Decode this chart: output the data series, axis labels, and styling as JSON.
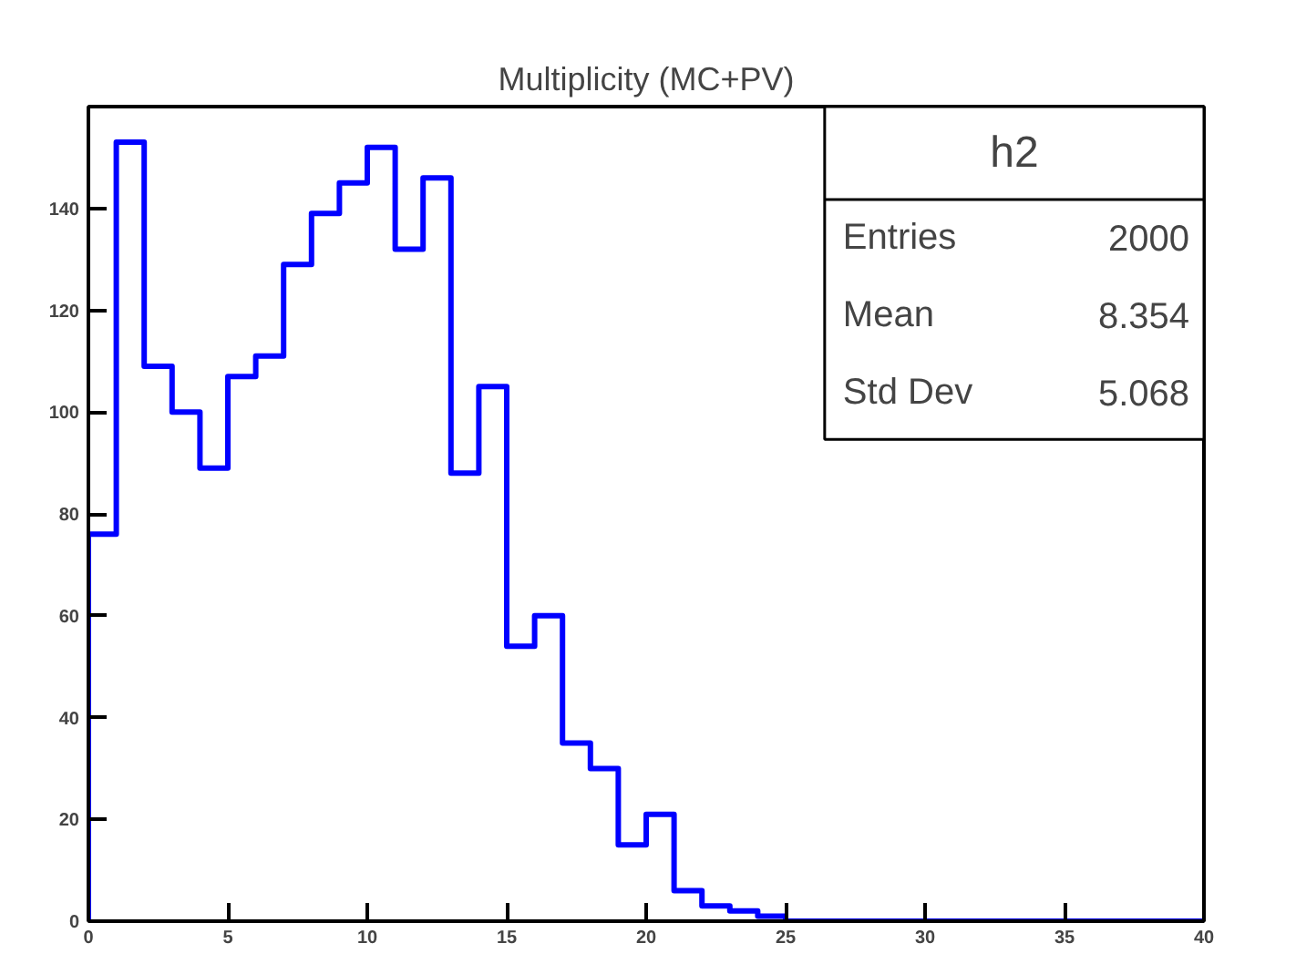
{
  "chart_data": {
    "type": "histogram",
    "title": "Multiplicity (MC+PV)",
    "bins": [
      0,
      1,
      2,
      3,
      4,
      5,
      6,
      7,
      8,
      9,
      10,
      11,
      12,
      13,
      14,
      15,
      16,
      17,
      18,
      19,
      20,
      21,
      22,
      23,
      24,
      25,
      26,
      27,
      28,
      29,
      30,
      31,
      32,
      33,
      34,
      35,
      36,
      37,
      38,
      39,
      40
    ],
    "values": [
      76,
      153,
      109,
      100,
      89,
      107,
      111,
      129,
      139,
      145,
      152,
      132,
      146,
      88,
      105,
      54,
      60,
      35,
      30,
      15,
      21,
      6,
      3,
      2,
      1,
      0,
      0,
      0,
      0,
      0,
      0,
      0,
      0,
      0,
      0,
      0,
      0,
      0,
      0,
      0
    ],
    "color": "#0000ff",
    "xlim": [
      0,
      40
    ],
    "xticks": [
      0,
      5,
      10,
      15,
      20,
      25,
      30,
      35,
      40
    ],
    "ylim": [
      0,
      160
    ],
    "yticks": [
      0,
      20,
      40,
      60,
      80,
      100,
      120,
      140
    ],
    "grid": false,
    "annotations": [
      "h2",
      "Entries",
      "2000",
      "Mean",
      "8.354",
      "Std Dev",
      "5.068"
    ]
  }
}
